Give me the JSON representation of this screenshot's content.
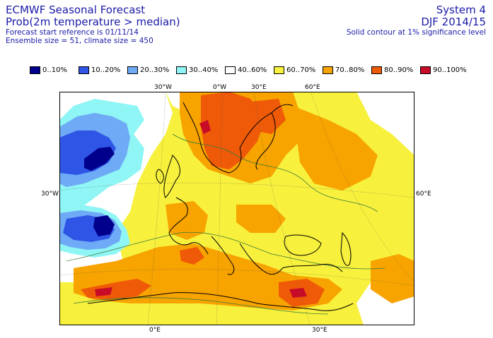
{
  "header": {
    "title_line1": "ECMWF Seasonal Forecast",
    "title_line2": "Prob(2m temperature > median)",
    "info_line1": "Forecast start reference is 01/11/14",
    "info_line2": "Ensemble size = 51, climate size = 450",
    "system": "System 4",
    "period": "DJF 2014/15",
    "note": "Solid contour at 1% significance level"
  },
  "legend": [
    {
      "label": "0..10%",
      "color": "#00008c"
    },
    {
      "label": "10..20%",
      "color": "#2e55e6"
    },
    {
      "label": "20..30%",
      "color": "#6eaaf5"
    },
    {
      "label": "30..40%",
      "color": "#8ff5f5"
    },
    {
      "label": "40..60%",
      "color": "#ffffff"
    },
    {
      "label": "60..70%",
      "color": "#f7f03c"
    },
    {
      "label": "70..80%",
      "color": "#f7a300"
    },
    {
      "label": "80..90%",
      "color": "#ef5a08"
    },
    {
      "label": "90..100%",
      "color": "#c80c28"
    }
  ],
  "axis_labels": {
    "top_30w": "30°W",
    "top_0w": "0°W",
    "top_30e": "30°E",
    "top_60e": "60°E",
    "left_30w": "30°W",
    "right_60e": "60°E",
    "bottom_0e": "0°E",
    "bottom_30e": "30°E"
  },
  "icons": {
    "map": "europe-probability-map"
  }
}
